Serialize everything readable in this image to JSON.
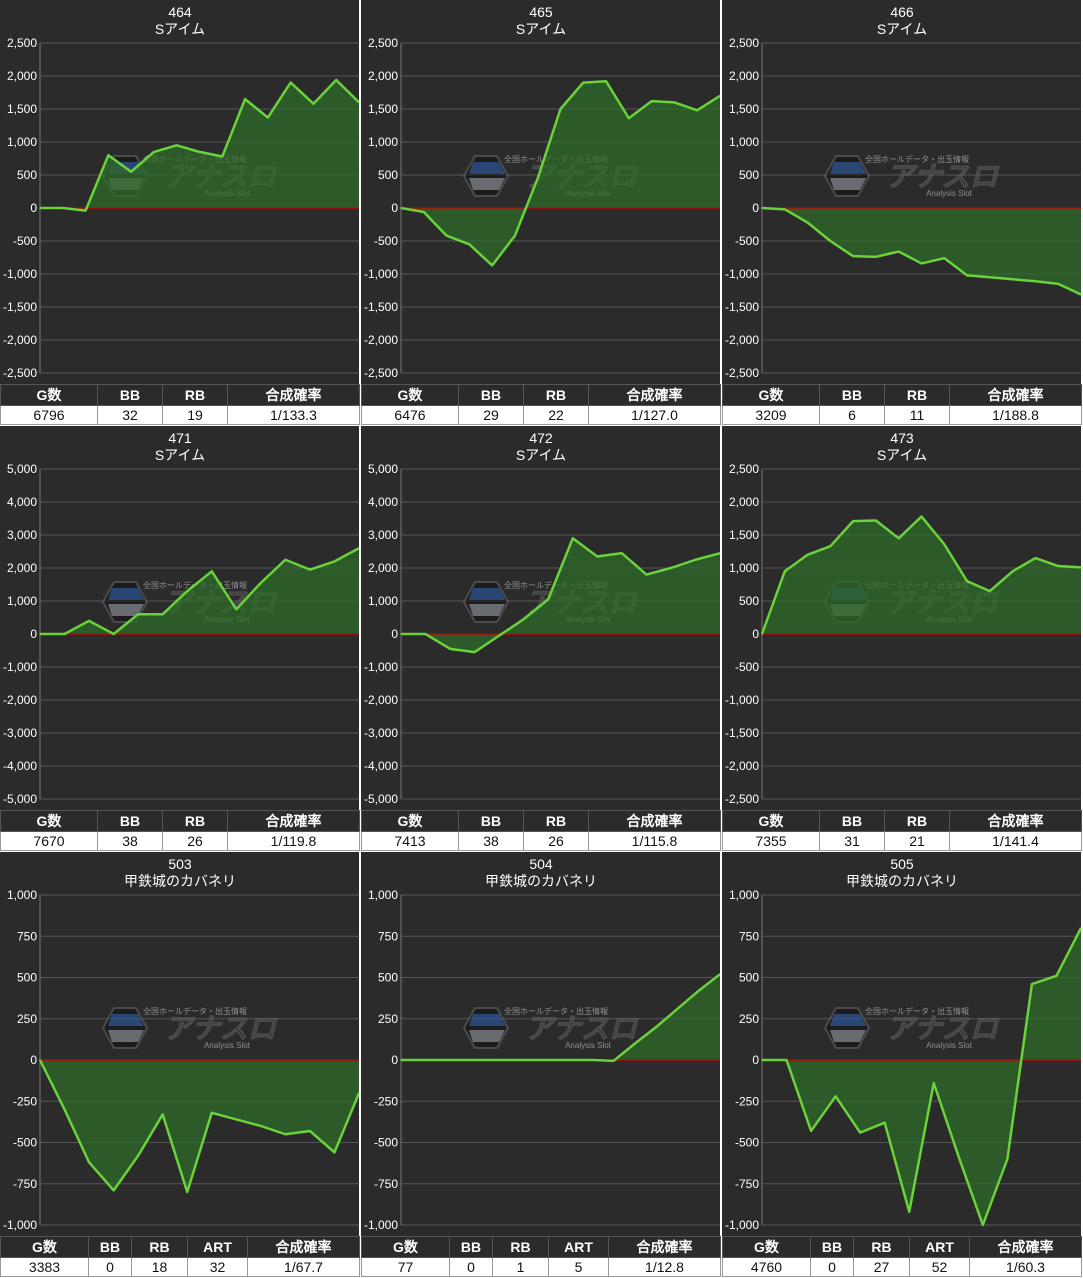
{
  "colors": {
    "line": "#6ad23a",
    "fill": "#2f6b2a",
    "zero": "#cc0000",
    "grid": "#555555",
    "bg": "#2b2b2b"
  },
  "watermark": {
    "brand": "アナスロ",
    "tagline": "全国ホールデータ・出玉情報",
    "sub": "Analysis Slot"
  },
  "charts": [
    {
      "number": "464",
      "machine": "Sアイム",
      "headers": [
        "G数",
        "BB",
        "RB",
        "合成確率"
      ],
      "values": [
        "6796",
        "32",
        "19",
        "1/133.3"
      ],
      "chart_data": {
        "type": "area",
        "ylim": [
          -2500,
          2500
        ],
        "yticks": [
          "2,500",
          "2,000",
          "1,500",
          "1,000",
          "500",
          "0",
          "-500",
          "-1,000",
          "-1,500",
          "-2,000",
          "-2,500"
        ],
        "values": [
          0,
          0,
          -40,
          800,
          550,
          850,
          950,
          850,
          780,
          1650,
          1370,
          1900,
          1580,
          1940,
          1600
        ]
      }
    },
    {
      "number": "465",
      "machine": "Sアイム",
      "headers": [
        "G数",
        "BB",
        "RB",
        "合成確率"
      ],
      "values": [
        "6476",
        "29",
        "22",
        "1/127.0"
      ],
      "chart_data": {
        "type": "area",
        "ylim": [
          -2500,
          2500
        ],
        "yticks": [
          "2,500",
          "2,000",
          "1,500",
          "1,000",
          "500",
          "0",
          "-500",
          "-1,000",
          "-1,500",
          "-2,000",
          "-2,500"
        ],
        "values": [
          0,
          -60,
          -420,
          -550,
          -870,
          -420,
          450,
          1500,
          1900,
          1920,
          1360,
          1620,
          1600,
          1480,
          1700
        ]
      }
    },
    {
      "number": "466",
      "machine": "Sアイム",
      "headers": [
        "G数",
        "BB",
        "RB",
        "合成確率"
      ],
      "values": [
        "3209",
        "6",
        "11",
        "1/188.8"
      ],
      "chart_data": {
        "type": "area",
        "ylim": [
          -2500,
          2500
        ],
        "yticks": [
          "2,500",
          "2,000",
          "1,500",
          "1,000",
          "500",
          "0",
          "-500",
          "-1,000",
          "-1,500",
          "-2,000",
          "-2,500"
        ],
        "values": [
          0,
          -20,
          -220,
          -500,
          -730,
          -740,
          -660,
          -840,
          -760,
          -1020,
          -1050,
          -1080,
          -1110,
          -1150,
          -1310
        ]
      }
    },
    {
      "number": "471",
      "machine": "Sアイム",
      "headers": [
        "G数",
        "BB",
        "RB",
        "合成確率"
      ],
      "values": [
        "7670",
        "38",
        "26",
        "1/119.8"
      ],
      "chart_data": {
        "type": "area",
        "ylim": [
          -5000,
          5000
        ],
        "yticks": [
          "5,000",
          "4,000",
          "3,000",
          "2,000",
          "1,000",
          "0",
          "-1,000",
          "-2,000",
          "-3,000",
          "-4,000",
          "-5,000"
        ],
        "values": [
          0,
          0,
          400,
          0,
          600,
          600,
          1300,
          1900,
          750,
          1550,
          2250,
          1950,
          2200,
          2600
        ]
      }
    },
    {
      "number": "472",
      "machine": "Sアイム",
      "headers": [
        "G数",
        "BB",
        "RB",
        "合成確率"
      ],
      "values": [
        "7413",
        "38",
        "26",
        "1/115.8"
      ],
      "chart_data": {
        "type": "area",
        "ylim": [
          -5000,
          5000
        ],
        "yticks": [
          "5,000",
          "4,000",
          "3,000",
          "2,000",
          "1,000",
          "0",
          "-1,000",
          "-2,000",
          "-3,000",
          "-4,000",
          "-5,000"
        ],
        "values": [
          0,
          0,
          -450,
          -550,
          -50,
          450,
          1050,
          2900,
          2350,
          2450,
          1800,
          2000,
          2250,
          2450
        ]
      }
    },
    {
      "number": "473",
      "machine": "Sアイム",
      "headers": [
        "G数",
        "BB",
        "RB",
        "合成確率"
      ],
      "values": [
        "7355",
        "31",
        "21",
        "1/141.4"
      ],
      "chart_data": {
        "type": "area",
        "ylim": [
          -2500,
          2500
        ],
        "yticks": [
          "2,500",
          "2,000",
          "1,500",
          "1,000",
          "500",
          "0",
          "-500",
          "-1,000",
          "-1,500",
          "-2,000",
          "-2,500"
        ],
        "values": [
          0,
          950,
          1200,
          1330,
          1710,
          1720,
          1450,
          1780,
          1360,
          800,
          650,
          950,
          1150,
          1030,
          1010
        ]
      }
    },
    {
      "number": "503",
      "machine": "甲鉄城のカバネリ",
      "headers": [
        "G数",
        "BB",
        "RB",
        "ART",
        "合成確率"
      ],
      "values": [
        "3383",
        "0",
        "18",
        "32",
        "1/67.7"
      ],
      "chart_data": {
        "type": "area",
        "ylim": [
          -1000,
          1000
        ],
        "yticks": [
          "1,000",
          "750",
          "500",
          "250",
          "0",
          "-250",
          "-500",
          "-750",
          "-1,000"
        ],
        "values": [
          0,
          -300,
          -620,
          -790,
          -580,
          -330,
          -800,
          -320,
          -360,
          -400,
          -450,
          -430,
          -560,
          -200
        ]
      }
    },
    {
      "number": "504",
      "machine": "甲鉄城のカバネリ",
      "headers": [
        "G数",
        "BB",
        "RB",
        "ART",
        "合成確率"
      ],
      "values": [
        "77",
        "0",
        "1",
        "5",
        "1/12.8"
      ],
      "chart_data": {
        "type": "area",
        "ylim": [
          -1000,
          1000
        ],
        "yticks": [
          "1,000",
          "750",
          "500",
          "250",
          "0",
          "-250",
          "-500",
          "-750",
          "-1,000"
        ],
        "values": [
          0,
          0,
          0,
          0,
          0,
          0,
          0,
          0,
          0,
          0,
          -5,
          100,
          200,
          310,
          420,
          520
        ]
      }
    },
    {
      "number": "505",
      "machine": "甲鉄城のカバネリ",
      "headers": [
        "G数",
        "BB",
        "RB",
        "ART",
        "合成確率"
      ],
      "values": [
        "4760",
        "0",
        "27",
        "52",
        "1/60.3"
      ],
      "chart_data": {
        "type": "area",
        "ylim": [
          -1000,
          1000
        ],
        "yticks": [
          "1,000",
          "750",
          "500",
          "250",
          "0",
          "-250",
          "-500",
          "-750",
          "-1,000"
        ],
        "values": [
          0,
          0,
          -430,
          -220,
          -440,
          -380,
          -920,
          -140,
          -580,
          -1000,
          -600,
          460,
          510,
          800
        ]
      }
    }
  ]
}
